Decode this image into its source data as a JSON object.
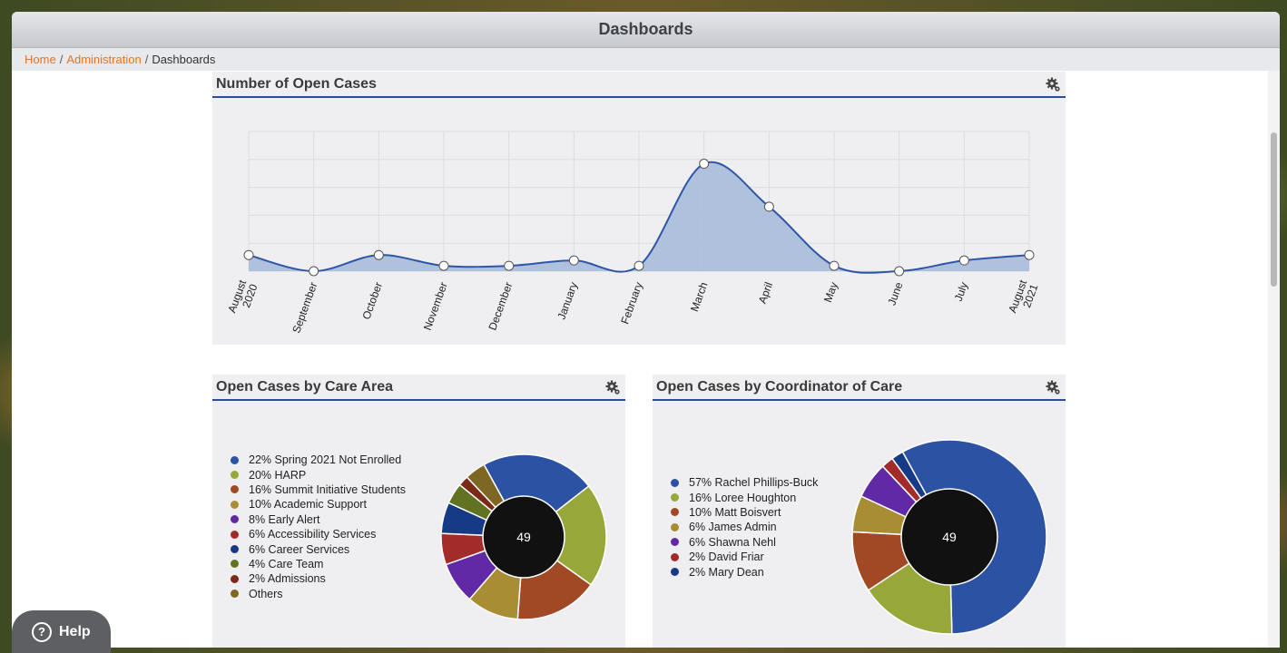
{
  "window": {
    "title": "Dashboards"
  },
  "breadcrumb": {
    "home": "Home",
    "admin": "Administration",
    "current": "Dashboards",
    "separator": "/"
  },
  "help": {
    "label": "Help",
    "icon": "question-circle-icon"
  },
  "panels": {
    "open_cases": {
      "title": "Number of Open Cases",
      "settings_icon": "gear-icon"
    },
    "care_area": {
      "title": "Open Cases by Care Area",
      "settings_icon": "gear-icon"
    },
    "coordinator": {
      "title": "Open Cases by Coordinator of Care",
      "settings_icon": "gear-icon"
    }
  },
  "chart_data": [
    {
      "type": "area",
      "title": "Number of Open Cases",
      "categories": [
        "August 2020",
        "September",
        "October",
        "November",
        "December",
        "January",
        "February",
        "March",
        "April",
        "May",
        "June",
        "July",
        "August 2021"
      ],
      "values": [
        3,
        0,
        3,
        1,
        1,
        2,
        1,
        20,
        12,
        1,
        0,
        2,
        3
      ],
      "ylim": [
        0,
        26
      ],
      "grid": true,
      "colors": {
        "line": "#2f56a6",
        "fill": "#a9bbdb"
      }
    },
    {
      "type": "pie",
      "title": "Open Cases by Care Area",
      "center_label": "49",
      "legend_position": "left",
      "slices": [
        {
          "label": "22% Spring 2021 Not Enrolled",
          "value": 22,
          "color": "#2b52a3"
        },
        {
          "label": "20% HARP",
          "value": 20,
          "color": "#97a73a"
        },
        {
          "label": "16% Summit Initiative Students",
          "value": 16,
          "color": "#a14824"
        },
        {
          "label": "10% Academic Support",
          "value": 10,
          "color": "#a88d35"
        },
        {
          "label": "8% Early Alert",
          "value": 8,
          "color": "#6129a6"
        },
        {
          "label": "6% Accessibility Services",
          "value": 6,
          "color": "#a32b29"
        },
        {
          "label": "6% Career Services",
          "value": 6,
          "color": "#163a85"
        },
        {
          "label": "4% Care Team",
          "value": 4,
          "color": "#617322"
        },
        {
          "label": "2% Admissions",
          "value": 2,
          "color": "#7a2a16"
        },
        {
          "label": "Others",
          "value": 4,
          "color": "#7d6722"
        }
      ]
    },
    {
      "type": "pie",
      "title": "Open Cases by Coordinator of Care",
      "center_label": "49",
      "legend_position": "left",
      "slices": [
        {
          "label": "57% Rachel Phillips-Buck",
          "value": 57,
          "color": "#2b52a3"
        },
        {
          "label": "16% Loree Houghton",
          "value": 16,
          "color": "#97a73a"
        },
        {
          "label": "10% Matt Boisvert",
          "value": 10,
          "color": "#a14824"
        },
        {
          "label": "6% James Admin",
          "value": 6,
          "color": "#a88d35"
        },
        {
          "label": "6% Shawna Nehl",
          "value": 6,
          "color": "#6129a6"
        },
        {
          "label": "2% David Friar",
          "value": 2,
          "color": "#a32b29"
        },
        {
          "label": "2% Mary Dean",
          "value": 2,
          "color": "#163a85"
        }
      ]
    }
  ]
}
